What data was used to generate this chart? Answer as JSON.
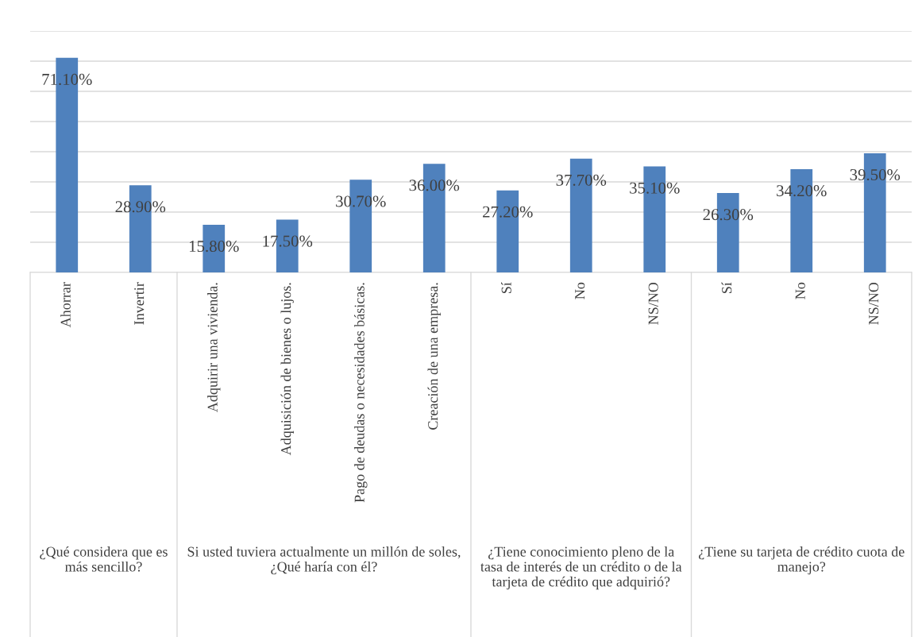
{
  "chart_data": {
    "type": "bar",
    "categories": [
      "Ahorrar",
      "Invertir",
      "Adquirir una vivienda.",
      "Adquisición de bienes o lujos.",
      "Pago de deudas o necesidades básicas.",
      "Creación de una empresa.",
      "Sí",
      "No",
      "NS/NO",
      "Sí",
      "No",
      "NS/NO"
    ],
    "values": [
      71.1,
      28.9,
      15.8,
      17.5,
      30.7,
      36.0,
      27.2,
      37.7,
      35.1,
      26.3,
      34.2,
      39.5
    ],
    "value_labels": [
      "71.10%",
      "28.90%",
      "15.80%",
      "17.50%",
      "30.70%",
      "36.00%",
      "27.20%",
      "37.70%",
      "35.10%",
      "26.30%",
      "34.20%",
      "39.50%"
    ],
    "color": "#4f81bd",
    "ylim": [
      0,
      80
    ],
    "yticks": [
      {
        "value": 0,
        "label": null
      },
      {
        "value": 10,
        "label": null
      },
      {
        "value": 20,
        "label": null
      },
      {
        "value": 30,
        "label": null
      },
      {
        "value": 40,
        "label": null
      },
      {
        "value": 50,
        "label": null
      },
      {
        "value": 60,
        "label": null
      },
      {
        "value": 70,
        "label": null
      },
      {
        "value": 80,
        "label": null
      }
    ],
    "grid": "y",
    "tick_labels": "x",
    "annotations": [
      "¿Qué considera que es más sencillo?",
      "Si usted tuviera actualmente un millón de soles, ¿Qué haría con él?",
      "¿Tiene conocimiento pleno de la tasa de interés de un crédito o de la tarjeta de crédito que adquirió?",
      "¿Tiene su tarjeta de crédito cuota de manejo?"
    ]
  }
}
